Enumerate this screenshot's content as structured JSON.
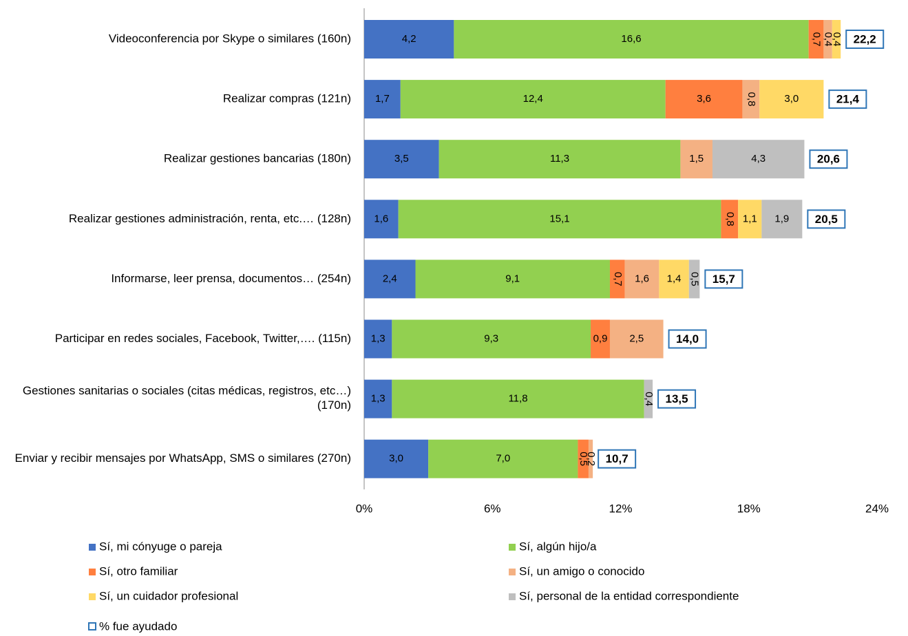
{
  "chart_data": {
    "type": "stacked_barh",
    "categories": [
      "Videoconferencia por Skype o similares (160n)",
      "Realizar compras (121n)",
      "Realizar gestiones bancarias (180n)",
      "Realizar gestiones administración, renta, etc.… (128n)",
      "Informarse, leer prensa, documentos… (254n)",
      "Participar en redes sociales, Facebook, Twitter,…. (115n)",
      "Gestiones sanitarias o sociales (citas médicas, registros, etc…) (170n)",
      "Enviar y recibir mensajes por WhatsApp, SMS o similares (270n)"
    ],
    "series": [
      {
        "name": "Sí, mi cónyuge o pareja",
        "color": "#4472c4",
        "values": [
          4.2,
          1.7,
          3.5,
          1.6,
          2.4,
          1.3,
          1.3,
          3.0
        ],
        "value_labels": [
          "4,2",
          "1,7",
          "3,5",
          "1,6",
          "2,4",
          "1,3",
          "1,3",
          "3,0"
        ]
      },
      {
        "name": "Sí, algún hijo/a",
        "color": "#92d050",
        "values": [
          16.6,
          12.4,
          11.3,
          15.1,
          9.1,
          9.3,
          11.8,
          7.0
        ],
        "value_labels": [
          "16,6",
          "12,4",
          "11,3",
          "15,1",
          "9,1",
          "9,3",
          "11,8",
          "7,0"
        ]
      },
      {
        "name": "Sí, otro familiar",
        "color": "#ff7f3f",
        "values": [
          0.7,
          3.6,
          null,
          0.8,
          0.7,
          0.9,
          null,
          0.5
        ],
        "value_labels": [
          "0,7",
          "3,6",
          null,
          "0,8",
          "0,7",
          "0,9",
          null,
          "0,5"
        ]
      },
      {
        "name": "Sí, un amigo o conocido",
        "color": "#f4b183",
        "values": [
          0.4,
          0.8,
          1.5,
          null,
          1.6,
          2.5,
          null,
          0.2
        ],
        "value_labels": [
          "0,4",
          "0,8",
          "1,5",
          null,
          "1,6",
          "2,5",
          null,
          "0,2"
        ]
      },
      {
        "name": "Sí, un cuidador profesional",
        "color": "#ffd966",
        "values": [
          0.4,
          3.0,
          null,
          1.1,
          1.4,
          null,
          null,
          null
        ],
        "value_labels": [
          "0,4",
          "3,0",
          null,
          "1,1",
          "1,4",
          null,
          null,
          null
        ]
      },
      {
        "name": "Sí, personal de la entidad correspondiente",
        "color": "#bfbfbf",
        "values": [
          null,
          null,
          4.3,
          1.9,
          0.5,
          null,
          0.4,
          null
        ],
        "value_labels": [
          null,
          null,
          "4,3",
          "1,9",
          "0,5",
          null,
          "0,4",
          null
        ]
      }
    ],
    "totals": {
      "name": "% fue ayudado",
      "color": "#2e75b6",
      "values": [
        22.2,
        21.4,
        20.6,
        20.5,
        15.7,
        14.0,
        13.5,
        10.7
      ],
      "value_labels": [
        "22,2",
        "21,4",
        "20,6",
        "20,5",
        "15,7",
        "14,0",
        "13,5",
        "10,7"
      ]
    },
    "xlim": [
      0,
      24
    ],
    "xticks": [
      {
        "value": 0,
        "label": "0%"
      },
      {
        "value": 6,
        "label": "6%"
      },
      {
        "value": 12,
        "label": "12%"
      },
      {
        "value": 18,
        "label": "18%"
      },
      {
        "value": 24,
        "label": "24%"
      }
    ],
    "grid": false
  }
}
